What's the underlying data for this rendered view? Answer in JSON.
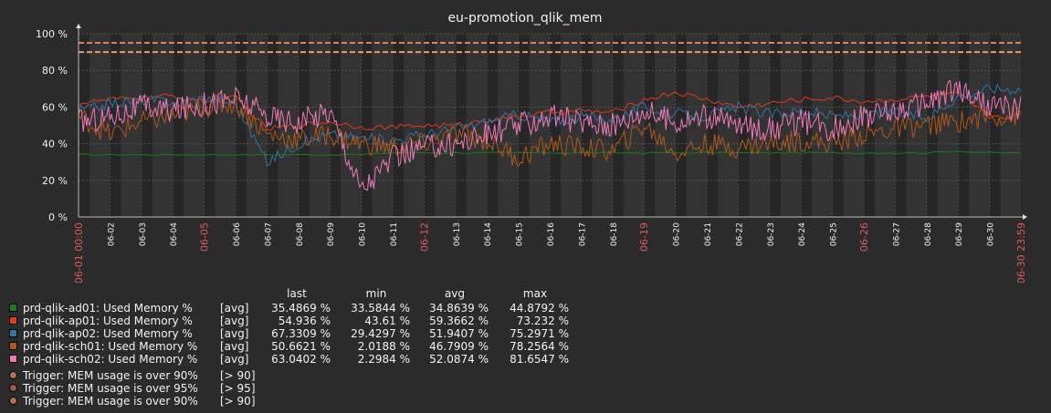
{
  "chart_data": {
    "type": "line",
    "title": "eu-promotion_qlik_mem",
    "ylim": [
      0,
      100
    ],
    "y_ticks": [
      "100 %",
      "80 %",
      "60 %",
      "40 %",
      "20 %",
      "0 %"
    ],
    "y_tick_values": [
      100,
      80,
      60,
      40,
      20,
      0
    ],
    "x_start_label": "06-01 00:00",
    "x_end_label": "06-30 23:59",
    "x_day_labels": [
      "06-02",
      "06-03",
      "06-04",
      "06-05",
      "06-06",
      "06-07",
      "06-08",
      "06-09",
      "06-10",
      "06-11",
      "06-12",
      "06-13",
      "06-14",
      "06-15",
      "06-16",
      "06-17",
      "06-18",
      "06-19",
      "06-20",
      "06-21",
      "06-22",
      "06-23",
      "06-24",
      "06-25",
      "06-26",
      "06-27",
      "06-28",
      "06-29",
      "06-30"
    ],
    "x_highlight_labels": [
      "06-01 00:00",
      "06-05",
      "06-12",
      "06-19",
      "06-26",
      "06-30 23:59"
    ],
    "grid": true,
    "thresholds": [
      {
        "value": 95,
        "color": "#e08060"
      },
      {
        "value": 90,
        "color": "#e0a070"
      }
    ],
    "x": [
      1,
      2,
      3,
      4,
      5,
      6,
      7,
      8,
      9,
      10,
      11,
      12,
      13,
      14,
      15,
      16,
      17,
      18,
      19,
      20,
      21,
      22,
      23,
      24,
      25,
      26,
      27,
      28,
      29,
      30
    ],
    "series": [
      {
        "name": "prd-qlik-ad01: Used Memory %",
        "color": "#1a7d1a",
        "values": [
          34,
          34,
          34,
          34,
          34,
          34,
          34,
          34,
          34,
          34,
          35,
          35,
          35,
          35,
          35,
          35,
          35,
          35,
          35,
          35,
          35,
          35,
          35,
          35,
          35,
          35,
          35,
          35,
          36,
          35
        ]
      },
      {
        "name": "prd-qlik-ap01: Used Memory %",
        "color": "#e33a0f",
        "values": [
          62,
          64,
          65,
          66,
          63,
          65,
          48,
          50,
          52,
          49,
          49,
          50,
          50,
          53,
          55,
          57,
          58,
          57,
          64,
          68,
          64,
          60,
          62,
          64,
          65,
          63,
          64,
          66,
          67,
          55
        ]
      },
      {
        "name": "prd-qlik-ap02: Used Memory %",
        "color": "#2e74a8",
        "values": [
          58,
          62,
          64,
          63,
          65,
          62,
          30,
          40,
          45,
          43,
          42,
          45,
          48,
          52,
          56,
          52,
          55,
          53,
          60,
          56,
          55,
          60,
          56,
          58,
          55,
          56,
          57,
          54,
          66,
          70
        ]
      },
      {
        "name": "prd-qlik-sch01: Used Memory %",
        "color": "#b25818",
        "values": [
          55,
          45,
          52,
          55,
          60,
          62,
          45,
          42,
          45,
          40,
          38,
          40,
          45,
          42,
          32,
          40,
          38,
          36,
          50,
          35,
          40,
          38,
          40,
          42,
          40,
          45,
          48,
          50,
          52,
          55
        ]
      },
      {
        "name": "prd-qlik-sch02: Used Memory %",
        "color": "#f07ab8",
        "values": [
          52,
          55,
          60,
          58,
          62,
          65,
          55,
          52,
          58,
          15,
          32,
          38,
          40,
          45,
          50,
          55,
          52,
          50,
          58,
          52,
          55,
          50,
          48,
          52,
          48,
          55,
          58,
          62,
          70,
          60
        ]
      }
    ]
  },
  "legend": {
    "headers": {
      "last": "last",
      "min": "min",
      "avg": "avg",
      "max": "max"
    },
    "rows": [
      {
        "name": "prd-qlik-ad01: Used Memory %",
        "fn": "[avg]",
        "last": "35.4869 %",
        "min": "33.5844 %",
        "avg": "34.8639 %",
        "max": "44.8792 %",
        "color": "#1a7d1a"
      },
      {
        "name": "prd-qlik-ap01: Used Memory %",
        "fn": "[avg]",
        "last": "54.936 %",
        "min": "43.61 %",
        "avg": "59.3662 %",
        "max": "73.232 %",
        "color": "#e33a0f"
      },
      {
        "name": "prd-qlik-ap02: Used Memory %",
        "fn": "[avg]",
        "last": "67.3309 %",
        "min": "29.4297 %",
        "avg": "51.9407 %",
        "max": "75.2971 %",
        "color": "#2e74a8"
      },
      {
        "name": "prd-qlik-sch01: Used Memory %",
        "fn": "[avg]",
        "last": "50.6621 %",
        "min": "2.0188 %",
        "avg": "46.7909 %",
        "max": "78.2564 %",
        "color": "#b25818"
      },
      {
        "name": "prd-qlik-sch02: Used Memory %",
        "fn": "[avg]",
        "last": "63.0402 %",
        "min": "2.2984 %",
        "avg": "52.0874 %",
        "max": "81.6547 %",
        "color": "#f07ab8"
      }
    ],
    "triggers": [
      {
        "name": "Trigger: MEM usage is over 90%",
        "cond": "[> 90]",
        "color": "#b87050"
      },
      {
        "name": "Trigger: MEM usage is over 95%",
        "cond": "[> 95]",
        "color": "#a05a48"
      },
      {
        "name": "Trigger: MEM usage is over 90%",
        "cond": "[> 90]",
        "color": "#b87050"
      }
    ]
  }
}
